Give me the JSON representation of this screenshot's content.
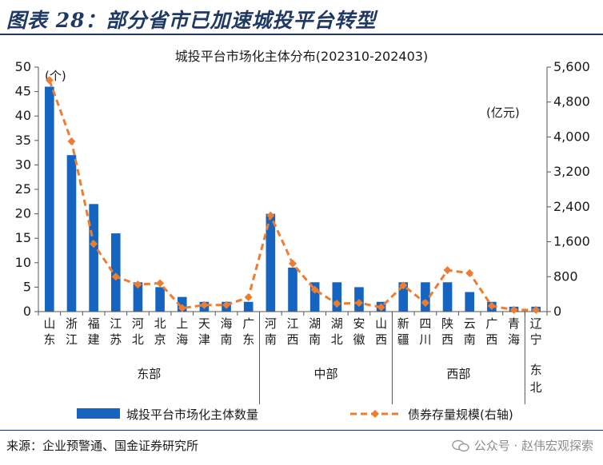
{
  "header": {
    "title": "图表 28：部分省市已加速城投平台转型"
  },
  "footer": {
    "source": "来源：企业预警通、国金证券研究所",
    "watermark": "公众号 · 赵伟宏观探索"
  },
  "chart_data": {
    "type": "bar+line",
    "title": "城投平台市场化主体分布(202310-202403)",
    "y_left_label": "(个)",
    "y_right_label": "(亿元)",
    "y_left_range": [
      0,
      50
    ],
    "y_left_ticks": [
      "0",
      "5",
      "10",
      "15",
      "20",
      "25",
      "30",
      "35",
      "40",
      "45",
      "50"
    ],
    "y_right_range": [
      0,
      5600
    ],
    "y_right_ticks": [
      "0",
      "800",
      "1,600",
      "2,400",
      "3,200",
      "4,000",
      "4,800",
      "5,600"
    ],
    "categories": [
      "山东",
      "浙江",
      "福建",
      "江苏",
      "河北",
      "北京",
      "上海",
      "天津",
      "海南",
      "广东",
      "河南",
      "江西",
      "湖南",
      "湖北",
      "安徽",
      "山西",
      "新疆",
      "四川",
      "陕西",
      "云南",
      "广西",
      "青海",
      "辽宁"
    ],
    "groups": [
      {
        "label": "东部",
        "count": 10
      },
      {
        "label": "中部",
        "count": 6
      },
      {
        "label": "西部",
        "count": 6
      },
      {
        "label": "东北",
        "count": 1
      }
    ],
    "series": [
      {
        "name": "城投平台市场化主体数量",
        "type": "bar",
        "axis": "left",
        "color": "#1565c0",
        "values": [
          46,
          32,
          22,
          16,
          6,
          5,
          3,
          2,
          2,
          2,
          20,
          9,
          6,
          6,
          5,
          2,
          6,
          6,
          6,
          4,
          2,
          1,
          1
        ]
      },
      {
        "name": "债券存量规模(右轴)",
        "type": "line",
        "axis": "right",
        "color": "#ed7d31",
        "values": [
          5300,
          3900,
          1550,
          800,
          620,
          650,
          80,
          150,
          150,
          330,
          2200,
          1100,
          500,
          180,
          200,
          100,
          600,
          200,
          950,
          880,
          130,
          40,
          40
        ]
      }
    ]
  }
}
